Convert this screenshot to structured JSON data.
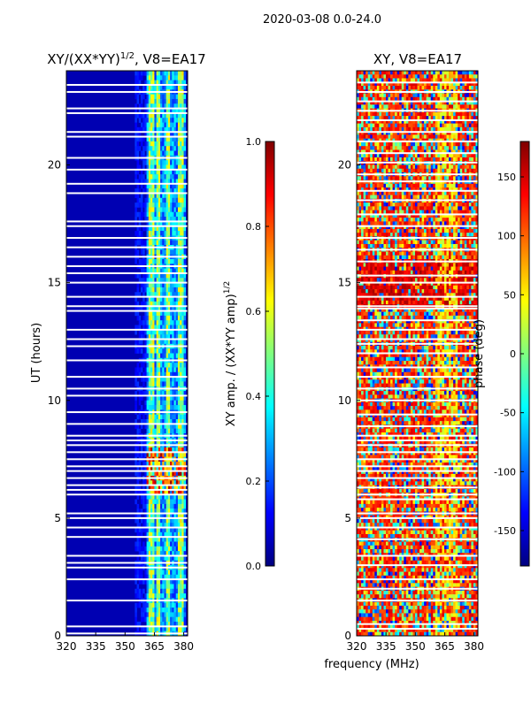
{
  "figure": {
    "suptitle": "2020-03-08 0.0-24.0",
    "xlabel_shared": "frequency (MHz)"
  },
  "colors": {
    "jet": [
      "#00007f",
      "#0000ff",
      "#007fff",
      "#00ffff",
      "#7fff7f",
      "#ffff00",
      "#ff7f00",
      "#ff0000",
      "#7f0000"
    ],
    "gap": "#ffffff",
    "axis": "#000000"
  },
  "chart_data": [
    {
      "type": "heatmap",
      "title": "XY/(XX*YY)",
      "title_sup": "1/2",
      "title_suffix": ", V8=EA17",
      "xlabel": "",
      "ylabel": "UT (hours)",
      "xlim": [
        320,
        382
      ],
      "ylim": [
        0,
        24
      ],
      "xticks": [
        "320",
        "335",
        "350",
        "365",
        "380"
      ],
      "yticks": [
        "0",
        "5",
        "10",
        "15",
        "20"
      ],
      "colorbar": {
        "label": "XY amp. / (XX*YY amp)",
        "label_sup": "1/2",
        "range": [
          0.0,
          1.0
        ],
        "ticks": [
          "0.0",
          "0.2",
          "0.4",
          "0.6",
          "0.8",
          "1.0"
        ]
      },
      "features": {
        "background_level": 0.05,
        "bright_band_mhz": [
          361,
          381
        ],
        "bright_channels_mhz": [
          363.5,
          367,
          372,
          378.5
        ],
        "bright_level": 0.55,
        "flare_hours": [
          5.9,
          8.0
        ],
        "flare_level": 0.9
      },
      "gap_hours": [
        0.1,
        0.4,
        1.5,
        2.4,
        2.9,
        3.1,
        3.4,
        4.2,
        4.6,
        5.0,
        5.2,
        6.0,
        6.2,
        6.4,
        6.7,
        7.0,
        7.2,
        7.5,
        7.8,
        8.1,
        8.3,
        8.5,
        9.0,
        9.5,
        10.2,
        10.5,
        11.0,
        11.7,
        12.3,
        12.6,
        13.0,
        13.8,
        14.0,
        14.4,
        15.0,
        15.4,
        15.7,
        16.1,
        16.5,
        16.9,
        17.4,
        17.6,
        18.8,
        19.2,
        19.8,
        20.3,
        21.2,
        21.4,
        22.2,
        22.4,
        23.1,
        23.4
      ]
    },
    {
      "type": "heatmap",
      "title": "XY, V8=EA17",
      "xlabel": "",
      "ylabel": "",
      "xlim": [
        320,
        382
      ],
      "ylim": [
        0,
        24
      ],
      "xticks": [
        "320",
        "335",
        "350",
        "365",
        "380"
      ],
      "yticks": [
        "0",
        "5",
        "10",
        "15",
        "20"
      ],
      "colorbar": {
        "label": "phase (deg)",
        "range": [
          -180,
          180
        ],
        "ticks": [
          "-150",
          "-100",
          "-50",
          "0",
          "50",
          "100",
          "150"
        ]
      },
      "features": {
        "dominant_phase_deg": [
          100,
          150
        ],
        "noisy_phase_spread_deg": 300,
        "warm_band_hours": [
          14.0,
          16.0
        ]
      },
      "gap_hours": [
        0.3,
        0.5,
        1.5,
        2.0,
        2.4,
        3.0,
        3.4,
        4.1,
        4.6,
        5.0,
        5.2,
        5.8,
        6.0,
        6.3,
        6.7,
        7.0,
        7.2,
        7.5,
        7.8,
        8.1,
        8.3,
        8.5,
        8.9,
        9.4,
        10.0,
        10.5,
        11.0,
        11.4,
        12.0,
        12.4,
        12.6,
        13.0,
        13.4,
        13.9,
        14.0,
        14.4,
        15.0,
        15.3,
        15.9,
        16.4,
        16.9,
        17.4,
        17.9,
        18.5,
        18.9,
        19.3,
        19.6,
        20.1,
        20.5,
        21.0,
        21.4,
        21.9,
        22.3,
        22.7,
        23.1,
        23.5
      ]
    }
  ]
}
